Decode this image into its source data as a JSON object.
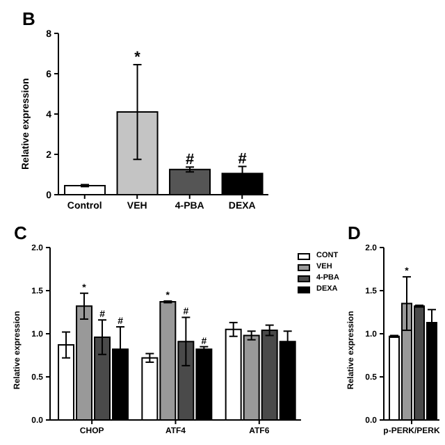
{
  "chart_data": [
    {
      "type": "bar",
      "title": "B",
      "ylabel": "Relative expression",
      "categories": [
        "Control",
        "VEH",
        "4-PBA",
        "DEXA"
      ],
      "values": [
        0.45,
        4.1,
        1.25,
        1.05
      ],
      "errors": [
        0.05,
        2.35,
        0.12,
        0.35
      ],
      "value_labels": [
        null,
        "*",
        "#",
        "#"
      ],
      "colors": [
        "#ffffff",
        "#c4c4c4",
        "#555555",
        "#000000"
      ],
      "ylim": [
        0,
        8
      ],
      "yticks": [
        0,
        2,
        4,
        6,
        8
      ],
      "grid": false,
      "legend": false
    },
    {
      "type": "bar",
      "title": "C",
      "ylabel": "Relative expression",
      "categories": [
        "CHOP",
        "ATF4",
        "ATF6"
      ],
      "series": [
        {
          "name": "CONT",
          "color": "#ffffff",
          "values": [
            0.87,
            0.72,
            1.05
          ],
          "errors": [
            0.15,
            0.05,
            0.08
          ],
          "value_labels": [
            null,
            null,
            null
          ]
        },
        {
          "name": "VEH",
          "color": "#999999",
          "values": [
            1.32,
            1.37,
            0.98
          ],
          "errors": [
            0.15,
            0.01,
            0.05
          ],
          "value_labels": [
            "*",
            "*",
            null
          ]
        },
        {
          "name": "4-PBA",
          "color": "#4a4a4a",
          "values": [
            0.96,
            0.91,
            1.04
          ],
          "errors": [
            0.2,
            0.28,
            0.06
          ],
          "value_labels": [
            "#",
            "#",
            null
          ]
        },
        {
          "name": "DEXA",
          "color": "#000000",
          "values": [
            0.82,
            0.82,
            0.91
          ],
          "errors": [
            0.26,
            0.03,
            0.12
          ],
          "value_labels": [
            "#",
            "#",
            null
          ]
        }
      ],
      "ylim": [
        0,
        2
      ],
      "yticks": [
        {
          "value": 0,
          "label": "0.0"
        },
        {
          "value": 0.5,
          "label": "0.5"
        },
        {
          "value": 1,
          "label": "1.0"
        },
        {
          "value": 1.5,
          "label": "1.5"
        },
        {
          "value": 2,
          "label": "2.0"
        }
      ],
      "grid": false,
      "legend": "top right"
    },
    {
      "type": "bar",
      "title": "D",
      "ylabel": "Relative expression",
      "categories": [
        "p-PERK/PERK"
      ],
      "series": [
        {
          "color": "#ffffff",
          "values": [
            0.97
          ],
          "errors": [
            0.01
          ],
          "value_labels": [
            null
          ]
        },
        {
          "color": "#999999",
          "values": [
            1.35
          ],
          "errors": [
            0.31
          ],
          "value_labels": [
            "*"
          ]
        },
        {
          "color": "#4a4a4a",
          "values": [
            1.32
          ],
          "errors": [
            0.01
          ],
          "value_labels": [
            null
          ]
        },
        {
          "color": "#000000",
          "values": [
            1.13
          ],
          "errors": [
            0.15
          ],
          "value_labels": [
            null
          ]
        }
      ],
      "ylim": [
        0,
        2
      ],
      "yticks": [
        {
          "value": 0,
          "label": "0.0"
        },
        {
          "value": 0.5,
          "label": "0.5"
        },
        {
          "value": 1,
          "label": "1.0"
        },
        {
          "value": 1.5,
          "label": "1.5"
        },
        {
          "value": 2,
          "label": "2.0"
        }
      ],
      "grid": false,
      "legend": false
    }
  ]
}
